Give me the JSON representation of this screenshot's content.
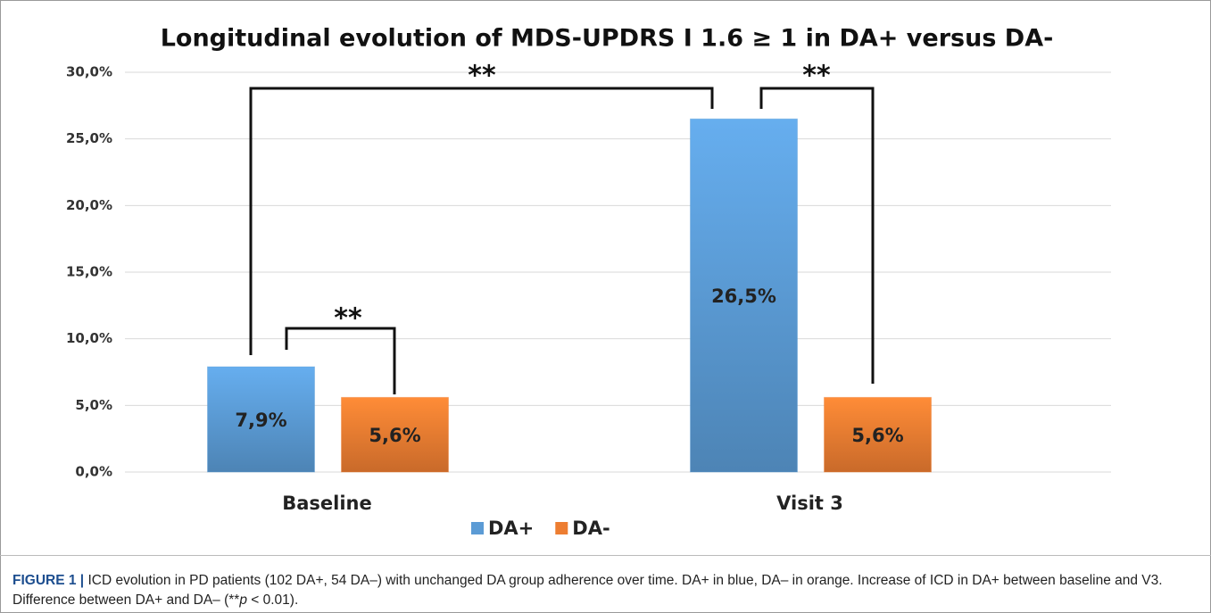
{
  "chart_data": {
    "type": "bar",
    "title": "Longitudinal evolution of MDS-UPDRS I 1.6 ≥ 1 in DA+ versus DA-",
    "categories": [
      "Baseline",
      "Visit 3"
    ],
    "series": [
      {
        "name": "DA+",
        "color": "#5b9bd5",
        "values": [
          7.9,
          26.5
        ],
        "value_labels": [
          "7,9%",
          "26,5%"
        ]
      },
      {
        "name": "DA-",
        "color": "#ed7d31",
        "values": [
          5.6,
          5.6
        ],
        "value_labels": [
          "5,6%",
          "5,6%"
        ]
      }
    ],
    "ylim": [
      0,
      30
    ],
    "yticks": [
      {
        "value": 0,
        "label": "0,0%"
      },
      {
        "value": 5,
        "label": "5,0%"
      },
      {
        "value": 10,
        "label": "10,0%"
      },
      {
        "value": 15,
        "label": "15,0%"
      },
      {
        "value": 20,
        "label": "20,0%"
      },
      {
        "value": 25,
        "label": "25,0%"
      },
      {
        "value": 30,
        "label": "30,0%"
      }
    ],
    "grid": true,
    "legend": "bottom",
    "annotations": [
      "**",
      "**",
      "**"
    ]
  },
  "caption": {
    "label": "FIGURE 1 |",
    "text": "ICD evolution in PD patients (102 DA+, 54 DA–) with unchanged DA group adherence over time. DA+ in blue, DA– in orange. Increase of ICD in DA+ between baseline and V3. Difference between DA+ and DA– (**",
    "italic": "p",
    "tail": " < 0.01)."
  }
}
